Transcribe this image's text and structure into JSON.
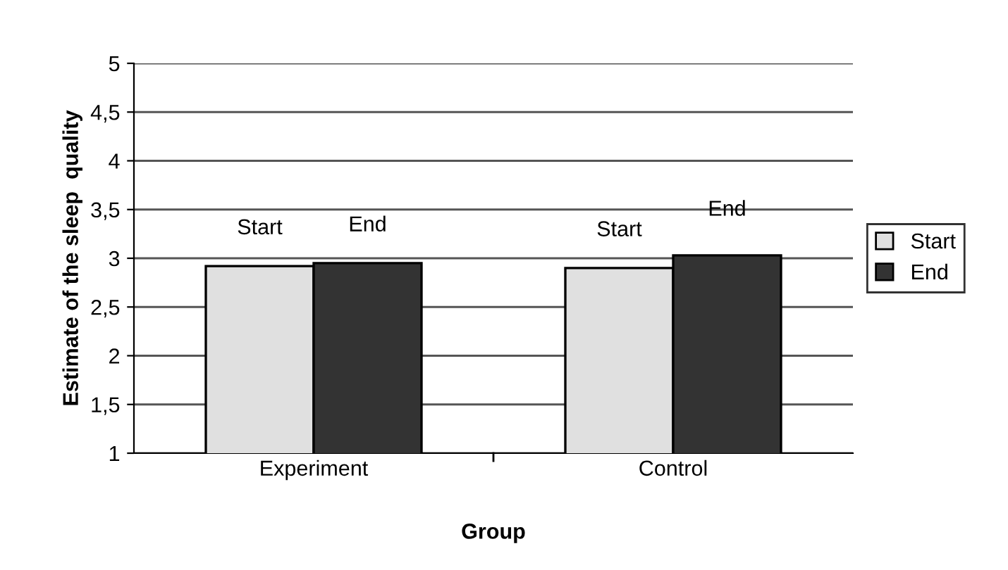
{
  "chart_data": {
    "type": "bar",
    "xlabel": "Group",
    "ylabel": "Estimate of the sleep  quality",
    "categories": [
      "Experiment",
      "Control"
    ],
    "series": [
      {
        "name": "Start",
        "color": "#e0e0e0",
        "values": [
          2.92,
          2.9
        ]
      },
      {
        "name": "End",
        "color": "#333333",
        "values": [
          2.95,
          3.03
        ]
      }
    ],
    "ylim": [
      1,
      5
    ],
    "yticks": [
      1,
      {
        "value": 1.5,
        "label": "1,5"
      },
      2,
      {
        "value": 2.5,
        "label": "2,5"
      },
      3,
      {
        "value": 3.5,
        "label": "3,5"
      },
      4,
      {
        "value": 4.5,
        "label": "4,5"
      },
      5
    ],
    "grid": "y",
    "legend": "right",
    "annotations": [
      "Start",
      "End",
      "Start",
      "End"
    ]
  }
}
